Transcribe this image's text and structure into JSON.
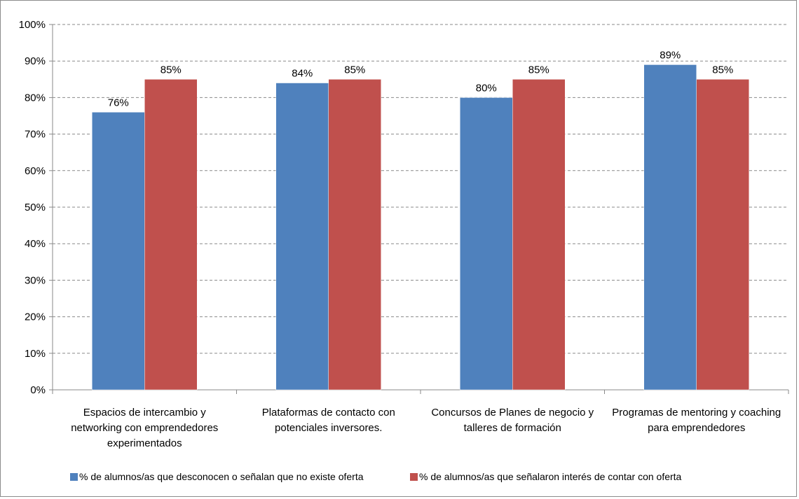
{
  "chart_data": {
    "type": "bar",
    "title": "",
    "xlabel": "",
    "ylabel": "",
    "ylim": [
      0,
      100
    ],
    "y_ticks": [
      "0%",
      "10%",
      "20%",
      "30%",
      "40%",
      "50%",
      "60%",
      "70%",
      "80%",
      "90%",
      "100%"
    ],
    "grid": true,
    "legend_position": "bottom",
    "categories": [
      [
        "Espacios de intercambio y",
        "networking con emprendedores",
        "experimentados"
      ],
      [
        "Plataformas de contacto con",
        "potenciales inversores."
      ],
      [
        "Concursos de Planes de negocio y",
        "talleres de formación"
      ],
      [
        "Programas de mentoring y coaching",
        "para emprendedores"
      ]
    ],
    "series": [
      {
        "name": "% de alumnos/as  que desconocen o señalan que no existe oferta",
        "color": "#4f81bd",
        "values": [
          76,
          84,
          80,
          89
        ],
        "labels": [
          "76%",
          "84%",
          "80%",
          "89%"
        ]
      },
      {
        "name": "% de alumnos/as  que señalaron interés de contar con oferta",
        "color": "#c0504d",
        "values": [
          85,
          85,
          85,
          85
        ],
        "labels": [
          "85%",
          "85%",
          "85%",
          "85%"
        ]
      }
    ]
  }
}
